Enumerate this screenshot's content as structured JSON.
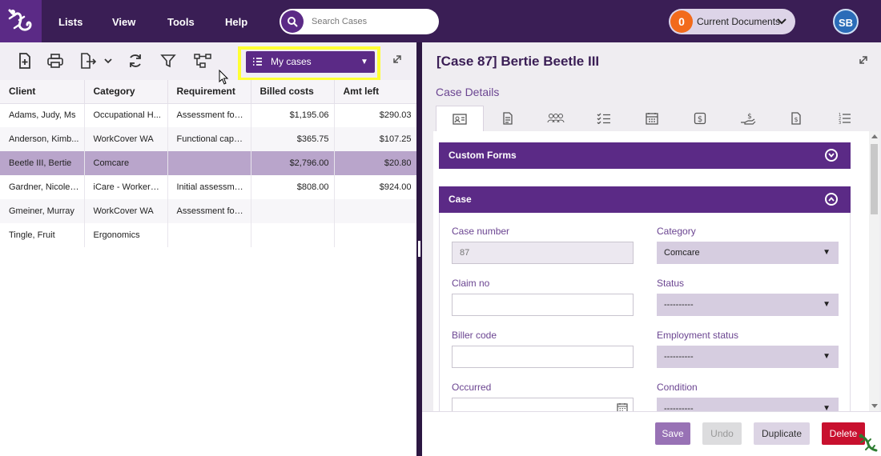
{
  "nav": {
    "menu": [
      "Lists",
      "View",
      "Tools",
      "Help"
    ],
    "search_placeholder": "Search Cases",
    "current_docs_count": "0",
    "current_docs_label": "Current Documents",
    "avatar_initials": "SB"
  },
  "left": {
    "filter_selected": "My cases",
    "columns": [
      "Client",
      "Category",
      "Requirement",
      "Billed costs",
      "Amt left"
    ],
    "rows": [
      {
        "client": "Adams, Judy, Ms",
        "category": "Occupational H...",
        "requirement": "Assessment for ...",
        "billed": "$1,195.06",
        "amt_left": "$290.03"
      },
      {
        "client": "Anderson, Kimb...",
        "category": "WorkCover WA",
        "requirement": "Functional capa...",
        "billed": "$365.75",
        "amt_left": "$107.25"
      },
      {
        "client": "Beetle III, Bertie",
        "category": "Comcare",
        "requirement": "",
        "billed": "$2,796.00",
        "amt_left": "$20.80"
      },
      {
        "client": "Gardner, Nicole,...",
        "category": "iCare - Workers ...",
        "requirement": "Initial assessment",
        "billed": "$808.00",
        "amt_left": "$924.00"
      },
      {
        "client": "Gmeiner, Murray",
        "category": "WorkCover WA",
        "requirement": "Assessment for ...",
        "billed": "",
        "amt_left": ""
      },
      {
        "client": "Tingle, Fruit",
        "category": "Ergonomics",
        "requirement": "",
        "billed": "",
        "amt_left": ""
      }
    ]
  },
  "right": {
    "title": "[Case 87] Bertie Beetle III",
    "section": "Case Details",
    "tabs": [
      "id-card-icon",
      "document-icon",
      "people-icon",
      "checklist-icon",
      "calendar-icon",
      "dollar-icon",
      "payment-hand-icon",
      "invoice-icon",
      "numbered-list-icon"
    ],
    "panels": {
      "custom_forms": "Custom Forms",
      "case": "Case"
    },
    "fields": {
      "case_number_label": "Case number",
      "case_number_value": "87",
      "category_label": "Category",
      "category_value": "Comcare",
      "claim_label": "Claim no",
      "claim_value": "",
      "status_label": "Status",
      "status_value": "----------",
      "biller_label": "Biller code",
      "biller_value": "",
      "employment_label": "Employment status",
      "employment_value": "----------",
      "occurred_label": "Occurred",
      "condition_label": "Condition",
      "condition_value": "----------"
    },
    "buttons": {
      "save": "Save",
      "undo": "Undo",
      "duplicate": "Duplicate",
      "delete": "Delete"
    }
  }
}
